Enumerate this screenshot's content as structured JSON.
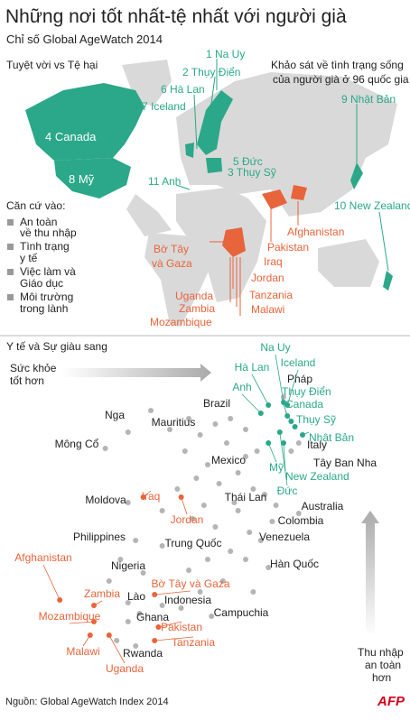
{
  "header": {
    "title": "Những nơi tốt nhất-tệ nhất với người già",
    "subtitle": "Chỉ số Global AgeWatch 2014"
  },
  "map": {
    "legend_title": "Tuyệt vời vs Tệ hại",
    "note": [
      "Khảo sát về tình trạng sống",
      "của người già ở 96 quốc gia"
    ],
    "best": [
      "1 Na Uy",
      "2 Thụy Điển",
      "3 Thụy Sỹ",
      "4 Canada",
      "5 Đức",
      "6 Hà Lan",
      "7 Iceland",
      "8 Mỹ",
      "9 Nhật Bản",
      "10 New Zealand",
      "11 Anh"
    ],
    "worst": [
      "Afghanistan",
      "Pakistan",
      [
        "Bờ Tây",
        "và Gaza"
      ],
      "Iraq",
      "Jordan",
      "Uganda",
      "Zambia",
      "Mozambique",
      "Tanzania",
      "Malawi"
    ],
    "criteria_title": "Căn cứ vào:",
    "criteria": [
      [
        "An toàn",
        "về thu nhập"
      ],
      [
        "Tình trạng",
        "y tế"
      ],
      [
        "Việc làm và",
        "Giáo dục"
      ],
      [
        "Môi trường",
        "trong lành"
      ]
    ]
  },
  "chart_data": {
    "type": "scatter",
    "title": "Y tế và  Sự giàu sang",
    "x_label": [
      "Sức khỏe",
      "tốt hơn"
    ],
    "y_label": [
      "Thu nhập",
      "an toàn",
      "hơn"
    ],
    "xlim": [
      0,
      100
    ],
    "ylim": [
      0,
      100
    ],
    "series": [
      {
        "color": "#2aa889",
        "label_color": "#2aa889",
        "labels": [
          "Na Uy",
          "Iceland",
          "Hà Lan",
          "Anh",
          "Thụy Điển",
          "Canada",
          "Thụy Sỹ",
          "Nhật Bản",
          "New Zealand",
          "Mỹ",
          "Đức"
        ],
        "x": [
          70,
          71,
          66,
          64,
          71,
          72,
          73,
          75,
          70,
          66,
          69
        ],
        "y": [
          98,
          97,
          97,
          94,
          93,
          91,
          89,
          86,
          83,
          83,
          87
        ]
      },
      {
        "color": "#b5b5b5",
        "label_color": "#222222",
        "labels": [
          "Pháp",
          "Italy",
          "Tây Ban Nha",
          "Nga",
          "Mauritius",
          "Brazil",
          "Mông Cổ",
          "Mexico",
          "Moldova",
          "Thái Lan",
          "Australia",
          "Colombia",
          "Philippines",
          "Trung Quốc",
          "Venezuela",
          "Hàn Quốc",
          "Nigeria",
          "Lào",
          "Indonesia",
          "Ghana",
          "Campuchia",
          "Rwanda"
        ],
        "x": [
          70,
          74,
          72,
          29,
          45,
          56,
          23,
          60,
          29,
          65,
          74,
          67,
          31,
          38,
          64,
          66,
          24,
          29,
          38,
          29,
          51,
          31
        ],
        "y": [
          100,
          83,
          80,
          87,
          92,
          92,
          81,
          78,
          61,
          64,
          57,
          54,
          47,
          45,
          47,
          37,
          32,
          24,
          23,
          17,
          19,
          8
        ]
      },
      {
        "color": "#e8643a",
        "label_color": "#e8643a",
        "labels": [
          "Iraq",
          "Jordan",
          "Afghanistan",
          "Zambia",
          "Mozambique",
          "Malawi",
          "Uganda",
          "Bờ Tây và Gaza",
          "Pakistan",
          "Tanzania"
        ],
        "x": [
          33,
          43,
          11,
          20,
          20,
          19,
          24,
          36,
          37,
          36
        ],
        "y": [
          63,
          63,
          25,
          23,
          17,
          12,
          12,
          27,
          15,
          10
        ]
      },
      {
        "color": "#b5b5b5",
        "x": [
          35,
          40,
          48,
          52,
          44,
          50,
          55,
          47,
          53,
          58,
          62,
          42,
          38,
          46,
          52,
          58,
          61,
          56,
          50,
          45,
          60,
          54,
          48,
          43,
          33,
          27,
          32,
          26,
          62,
          68,
          60,
          63,
          57,
          49
        ],
        "y": [
          95,
          88,
          86,
          90,
          80,
          75,
          83,
          70,
          68,
          72,
          66,
          66,
          58,
          55,
          52,
          58,
          50,
          43,
          40,
          36,
          40,
          32,
          28,
          22,
          35,
          40,
          20,
          10,
          28,
          60,
          88,
          80,
          61,
          60
        ]
      }
    ]
  },
  "footer": {
    "source": "Nguồn: Global AgeWatch Index 2014",
    "logo": "AFP"
  }
}
